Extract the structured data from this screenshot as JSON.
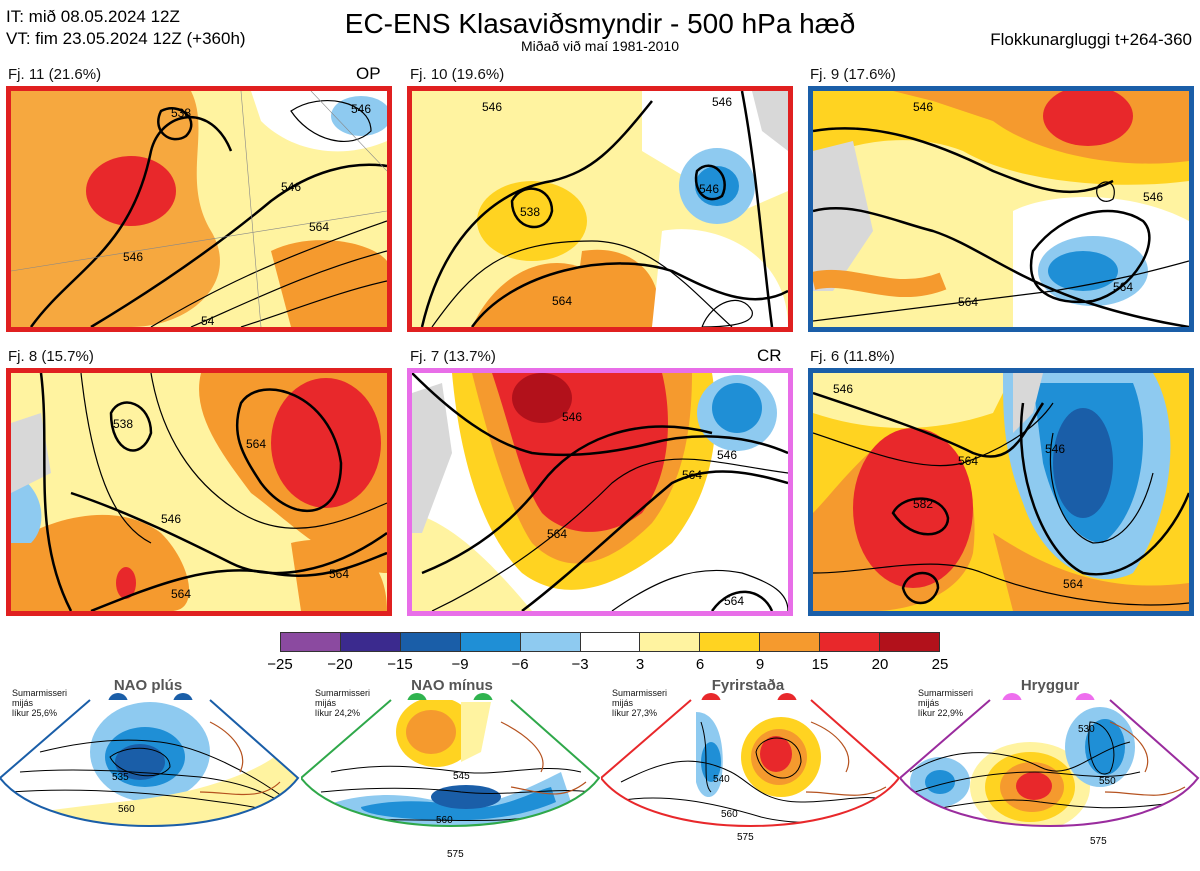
{
  "header": {
    "it_line": "IT: mið 08.05.2024 12Z",
    "vt_line": "VT: fim 23.05.2024 12Z  (+360h)",
    "title": "EC-ENS Klasaviðsmyndir - 500 hPa hæð",
    "subtitle": "Miðað við maí 1981-2010",
    "window": "Flokkunargluggi t+264-360"
  },
  "panels": [
    {
      "label": "Fj. 11 (21.6%)",
      "tag": "OP",
      "border_color": "#e8282b",
      "contours": [
        "546",
        "538",
        "546",
        "564",
        "54",
        "546"
      ]
    },
    {
      "label": "Fj. 10 (19.6%)",
      "tag": "",
      "border_color": "#e8282b",
      "contours": [
        "546",
        "538",
        "546",
        "546",
        "564"
      ]
    },
    {
      "label": "Fj. 9 (17.6%)",
      "tag": "",
      "border_color": "#1a5ea8",
      "contours": [
        "546",
        "546",
        "564",
        "564"
      ]
    },
    {
      "label": "Fj. 8 (15.7%)",
      "tag": "",
      "border_color": "#e8282b",
      "contours": [
        "538",
        "564",
        "546",
        "564",
        "564"
      ]
    },
    {
      "label": "Fj. 7 (13.7%)",
      "tag": "CR",
      "border_color": "#e86ee8",
      "contours": [
        "546",
        "546",
        "564",
        "564",
        "564"
      ]
    },
    {
      "label": "Fj. 6 (11.8%)",
      "tag": "",
      "border_color": "#1a5ea8",
      "contours": [
        "546",
        "564",
        "546",
        "582",
        "564"
      ]
    }
  ],
  "colorbar": {
    "ticks": [
      "−25",
      "−20",
      "−15",
      "−9",
      "−6",
      "−3",
      "3",
      "6",
      "9",
      "15",
      "20",
      "25"
    ],
    "colors": [
      "#8b4aa0",
      "#3b2a8e",
      "#1a5ea8",
      "#1f8fd6",
      "#8ecaf0",
      "#ffffff",
      "#fff3a0",
      "#ffd321",
      "#f59a2e",
      "#e8282b",
      "#b2111b"
    ]
  },
  "classes": [
    {
      "name": "NAO plús",
      "note_line1": "Sumarmisseri",
      "note_line2": "mijás",
      "note_line3": "líkur 25,6%",
      "color": "#1a5ea8",
      "dot_color": "#1a5ea8",
      "contours": [
        "535",
        "560"
      ]
    },
    {
      "name": "NAO mínus",
      "note_line1": "Sumarmisseri",
      "note_line2": "mijás",
      "note_line3": "líkur 24,2%",
      "color": "#2fa84a",
      "dot_color": "#2fb34e",
      "contours": [
        "545",
        "560",
        "575"
      ]
    },
    {
      "name": "Fyrirstaða",
      "note_line1": "Sumarmisseri",
      "note_line2": "mijás",
      "note_line3": "líkur 27,3%",
      "color": "#e8282b",
      "dot_color": "#e8282b",
      "contours": [
        "540",
        "560",
        "575"
      ]
    },
    {
      "name": "Hryggur",
      "note_line1": "Sumarmisseri",
      "note_line2": "mijás",
      "note_line3": "líkur 22,9%",
      "color": "#9a2c9e",
      "dot_color": "#ee6eee",
      "contours": [
        "530",
        "550",
        "575"
      ]
    }
  ]
}
